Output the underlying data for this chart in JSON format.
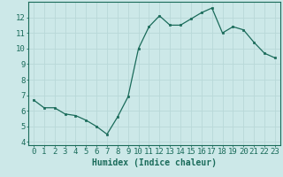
{
  "x": [
    0,
    1,
    2,
    3,
    4,
    5,
    6,
    7,
    8,
    9,
    10,
    11,
    12,
    13,
    14,
    15,
    16,
    17,
    18,
    19,
    20,
    21,
    22,
    23
  ],
  "y": [
    6.7,
    6.2,
    6.2,
    5.8,
    5.7,
    5.4,
    5.0,
    4.5,
    5.6,
    6.9,
    10.0,
    11.4,
    12.1,
    11.5,
    11.5,
    11.9,
    12.3,
    12.6,
    11.0,
    11.4,
    11.2,
    10.4,
    9.7,
    9.4
  ],
  "line_color": "#1a6b5a",
  "bg_color": "#cce8e8",
  "grid_color": "#b8d8d8",
  "xlabel": "Humidex (Indice chaleur)",
  "xlim": [
    -0.5,
    23.5
  ],
  "ylim": [
    3.8,
    13.0
  ],
  "yticks": [
    4,
    5,
    6,
    7,
    8,
    9,
    10,
    11,
    12
  ],
  "xticks": [
    0,
    1,
    2,
    3,
    4,
    5,
    6,
    7,
    8,
    9,
    10,
    11,
    12,
    13,
    14,
    15,
    16,
    17,
    18,
    19,
    20,
    21,
    22,
    23
  ],
  "xlabel_fontsize": 7,
  "tick_fontsize": 6.5,
  "marker_size": 2.0,
  "line_width": 0.9
}
